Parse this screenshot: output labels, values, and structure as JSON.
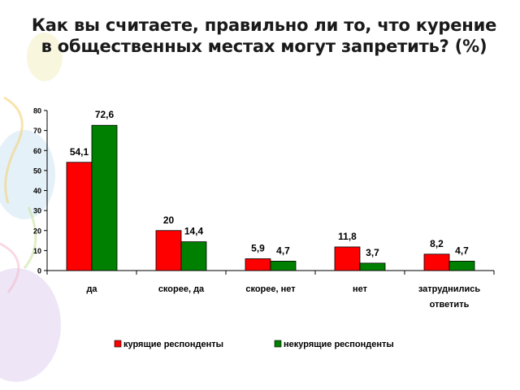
{
  "slide": {
    "title": "Как вы считаете, правильно ли то, что курение в общественных местах могут запретить? (%)"
  },
  "colors": {
    "series1": "#ff0000",
    "series2": "#008000",
    "axis": "#000000"
  },
  "chart_data": {
    "type": "bar",
    "title": "Как вы считаете, правильно ли то, что курение в общественных местах могут запретить? (%)",
    "xlabel": "",
    "ylabel": "",
    "ylim": [
      0,
      80
    ],
    "yticks": [
      0,
      10,
      20,
      30,
      40,
      50,
      60,
      70,
      80
    ],
    "grid": false,
    "legend_position": "bottom",
    "categories": [
      [
        "да"
      ],
      [
        "скорее, да"
      ],
      [
        "скорее, нет"
      ],
      [
        "нет"
      ],
      [
        "затруднились",
        "ответить"
      ]
    ],
    "series": [
      {
        "name": "курящие респонденты",
        "values": [
          54.1,
          20,
          5.9,
          11.8,
          8.2
        ],
        "labels": [
          "54,1",
          "20",
          "5,9",
          "11,8",
          "8,2"
        ]
      },
      {
        "name": "некурящие респонденты",
        "values": [
          72.6,
          14.4,
          4.7,
          3.7,
          4.7
        ],
        "labels": [
          "72,6",
          "14,4",
          "4,7",
          "3,7",
          "4,7"
        ]
      }
    ]
  }
}
